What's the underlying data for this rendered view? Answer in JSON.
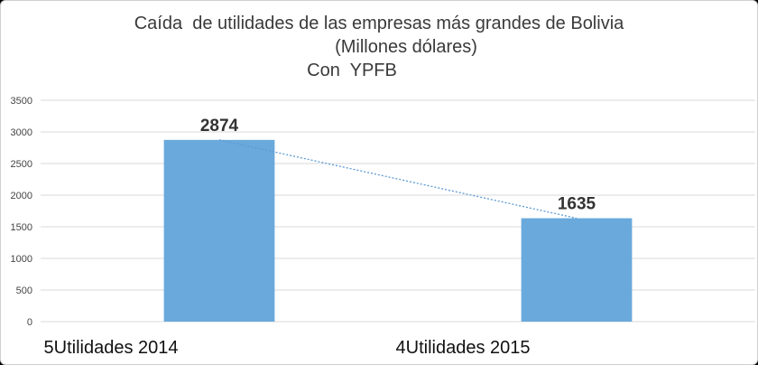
{
  "chart_data": {
    "type": "bar",
    "title": "Caída  de utilidades de las empresas más grandes de Bolivia",
    "subtitle": "(Millones dólares)",
    "subtitle2": "Con  YPFB",
    "categories": [
      "5Utilidades 2014",
      "4Utilidades 2015"
    ],
    "values": [
      2874,
      1635
    ],
    "data_labels": [
      "2874",
      "1635"
    ],
    "ylim": [
      0,
      3500
    ],
    "yticks": [
      0,
      500,
      1000,
      1500,
      2000,
      2500,
      3000,
      3500
    ],
    "grid": true,
    "legend": "none",
    "trendline": "dotted linear",
    "colors": {
      "bar": "#6aa9db",
      "trendline": "#5b9bd5",
      "grid": "#d9d9d9"
    }
  }
}
